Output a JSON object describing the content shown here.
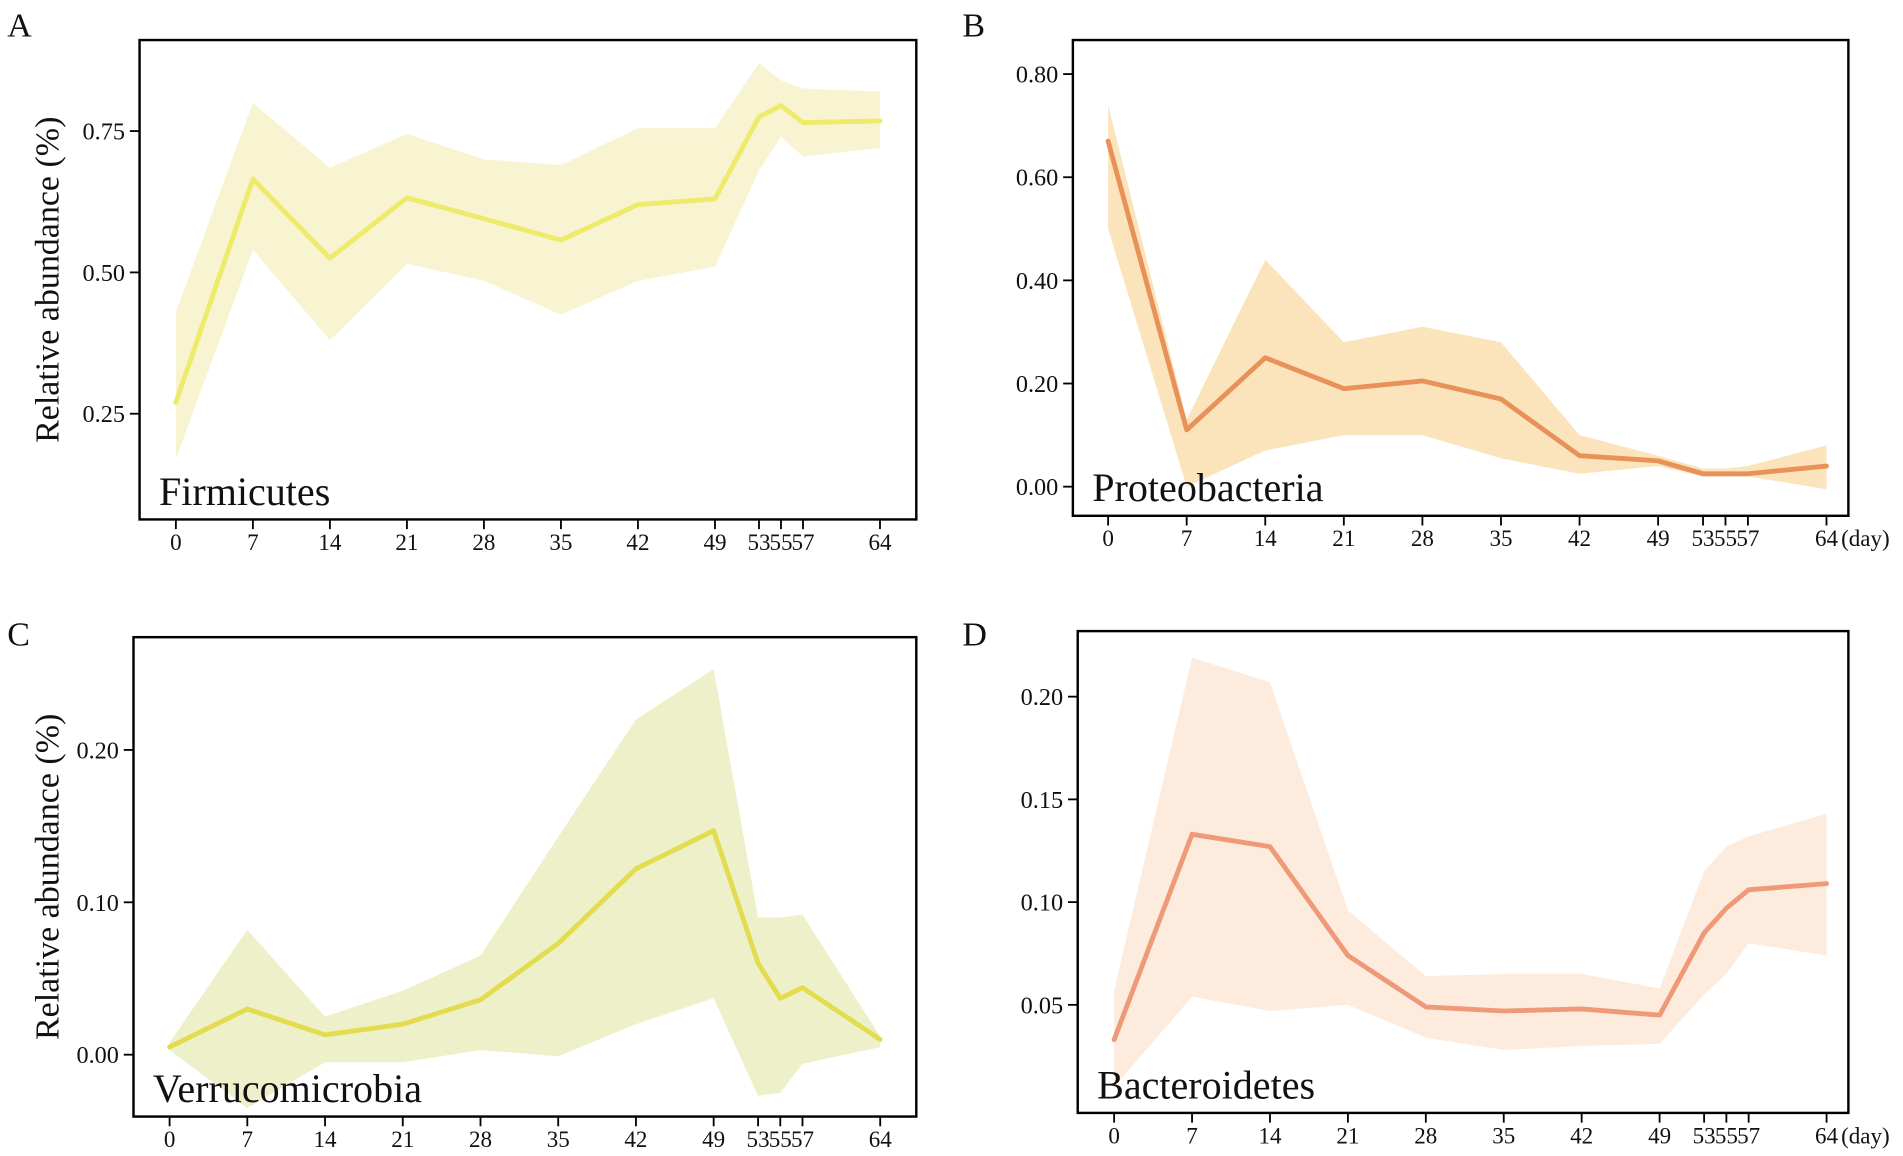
{
  "chart_data": [
    {
      "type": "line",
      "panel": "A",
      "ylabel": "Relative abundance (%)",
      "annotation": "Firmicutes",
      "x": [
        0,
        7,
        14,
        21,
        28,
        35,
        42,
        49,
        53,
        55,
        57,
        64
      ],
      "xticks": [
        0,
        7,
        14,
        21,
        28,
        35,
        42,
        49,
        53,
        55,
        57,
        64
      ],
      "xlim": [
        -3.3,
        67.3
      ],
      "ylim": [
        0.063,
        0.911
      ],
      "yticks": [
        {
          "value": 0.25,
          "label": "0.25"
        },
        {
          "value": 0.5,
          "label": "0.50"
        },
        {
          "value": 0.75,
          "label": "0.75"
        }
      ],
      "series": [
        {
          "color": "#eeea6a",
          "band_color": "#f8f4d2",
          "values": [
            0.27,
            0.665,
            0.525,
            0.632,
            0.595,
            0.557,
            0.62,
            0.63,
            0.775,
            0.795,
            0.765,
            0.768
          ],
          "lower": [
            0.17,
            0.54,
            0.38,
            0.515,
            0.485,
            0.425,
            0.485,
            0.51,
            0.68,
            0.74,
            0.705,
            0.72
          ],
          "upper": [
            0.43,
            0.8,
            0.685,
            0.745,
            0.7,
            0.69,
            0.755,
            0.755,
            0.87,
            0.84,
            0.825,
            0.82
          ]
        }
      ]
    },
    {
      "type": "line",
      "panel": "B",
      "annotation": "Proteobacteria",
      "x_unit": "(day)",
      "x": [
        0,
        7,
        14,
        21,
        28,
        35,
        42,
        49,
        53,
        55,
        57,
        64
      ],
      "xticks": [
        0,
        7,
        14,
        21,
        28,
        35,
        42,
        49,
        53,
        55,
        57,
        64
      ],
      "xlim": [
        -3.14,
        65.95
      ],
      "ylim": [
        -0.0565,
        0.866
      ],
      "yticks": [
        {
          "value": 0,
          "label": "0.00"
        },
        {
          "value": 0.2,
          "label": "0.20"
        },
        {
          "value": 0.4,
          "label": "0.40"
        },
        {
          "value": 0.6,
          "label": "0.60"
        },
        {
          "value": 0.8,
          "label": "0.80"
        }
      ],
      "series": [
        {
          "color": "#e8925a",
          "band_color": "#fbe4bb",
          "values": [
            0.67,
            0.11,
            0.25,
            0.19,
            0.205,
            0.17,
            0.06,
            0.05,
            0.025,
            0.025,
            0.025,
            0.04
          ],
          "lower": [
            0.5,
            0.0,
            0.07,
            0.1,
            0.1,
            0.055,
            0.025,
            0.04,
            0.02,
            0.02,
            0.02,
            -0.005
          ],
          "upper": [
            0.74,
            0.13,
            0.44,
            0.28,
            0.31,
            0.28,
            0.1,
            0.06,
            0.035,
            0.035,
            0.04,
            0.08
          ]
        }
      ]
    },
    {
      "type": "line",
      "panel": "C",
      "ylabel": "Relative abundance (%)",
      "annotation": "Verrucomicrobia",
      "x": [
        0,
        7,
        14,
        21,
        28,
        35,
        42,
        49,
        53,
        55,
        57,
        64
      ],
      "xticks": [
        0,
        7,
        14,
        21,
        28,
        35,
        42,
        49,
        53,
        55,
        57,
        64
      ],
      "xlim": [
        -3.25,
        67.25
      ],
      "ylim": [
        -0.0406,
        0.274
      ],
      "yticks": [
        {
          "value": 0,
          "label": "0.00"
        },
        {
          "value": 0.1,
          "label": "0.10"
        },
        {
          "value": 0.2,
          "label": "0.20"
        }
      ],
      "series": [
        {
          "color": "#e3dc4f",
          "band_color": "#eef0c9",
          "values": [
            0.005,
            0.03,
            0.013,
            0.02,
            0.036,
            0.073,
            0.122,
            0.147,
            0.06,
            0.037,
            0.044,
            0.01
          ],
          "lower": [
            0.003,
            -0.035,
            -0.005,
            -0.005,
            0.003,
            -0.001,
            0.02,
            0.037,
            -0.027,
            -0.025,
            -0.006,
            0.005
          ],
          "upper": [
            0.008,
            0.082,
            0.025,
            0.042,
            0.065,
            0.143,
            0.22,
            0.253,
            0.09,
            0.09,
            0.092,
            0.012
          ]
        }
      ]
    },
    {
      "type": "line",
      "panel": "D",
      "annotation": "Bacteroidetes",
      "x_unit": "(day)",
      "x": [
        0,
        7,
        14,
        21,
        28,
        35,
        42,
        49,
        53,
        55,
        57,
        64
      ],
      "xticks": [
        0,
        7,
        14,
        21,
        28,
        35,
        42,
        49,
        53,
        55,
        57,
        64
      ],
      "xlim": [
        -3.27,
        65.96
      ],
      "ylim": [
        -0.0026,
        0.2319
      ],
      "yticks": [
        0.05,
        {
          "value": 0.1,
          "label": "0.10"
        },
        0.15,
        {
          "value": 0.2,
          "label": "0.20"
        }
      ],
      "series": [
        {
          "color": "#ee9a78",
          "band_color": "#fdecdd",
          "values": [
            0.033,
            0.133,
            0.127,
            0.074,
            0.049,
            0.047,
            0.048,
            0.045,
            0.085,
            0.097,
            0.106,
            0.109
          ],
          "lower": [
            0.01,
            0.054,
            0.047,
            0.05,
            0.034,
            0.028,
            0.03,
            0.031,
            0.055,
            0.065,
            0.08,
            0.074
          ],
          "upper": [
            0.057,
            0.219,
            0.207,
            0.096,
            0.064,
            0.065,
            0.065,
            0.058,
            0.115,
            0.127,
            0.132,
            0.143
          ]
        }
      ]
    }
  ]
}
